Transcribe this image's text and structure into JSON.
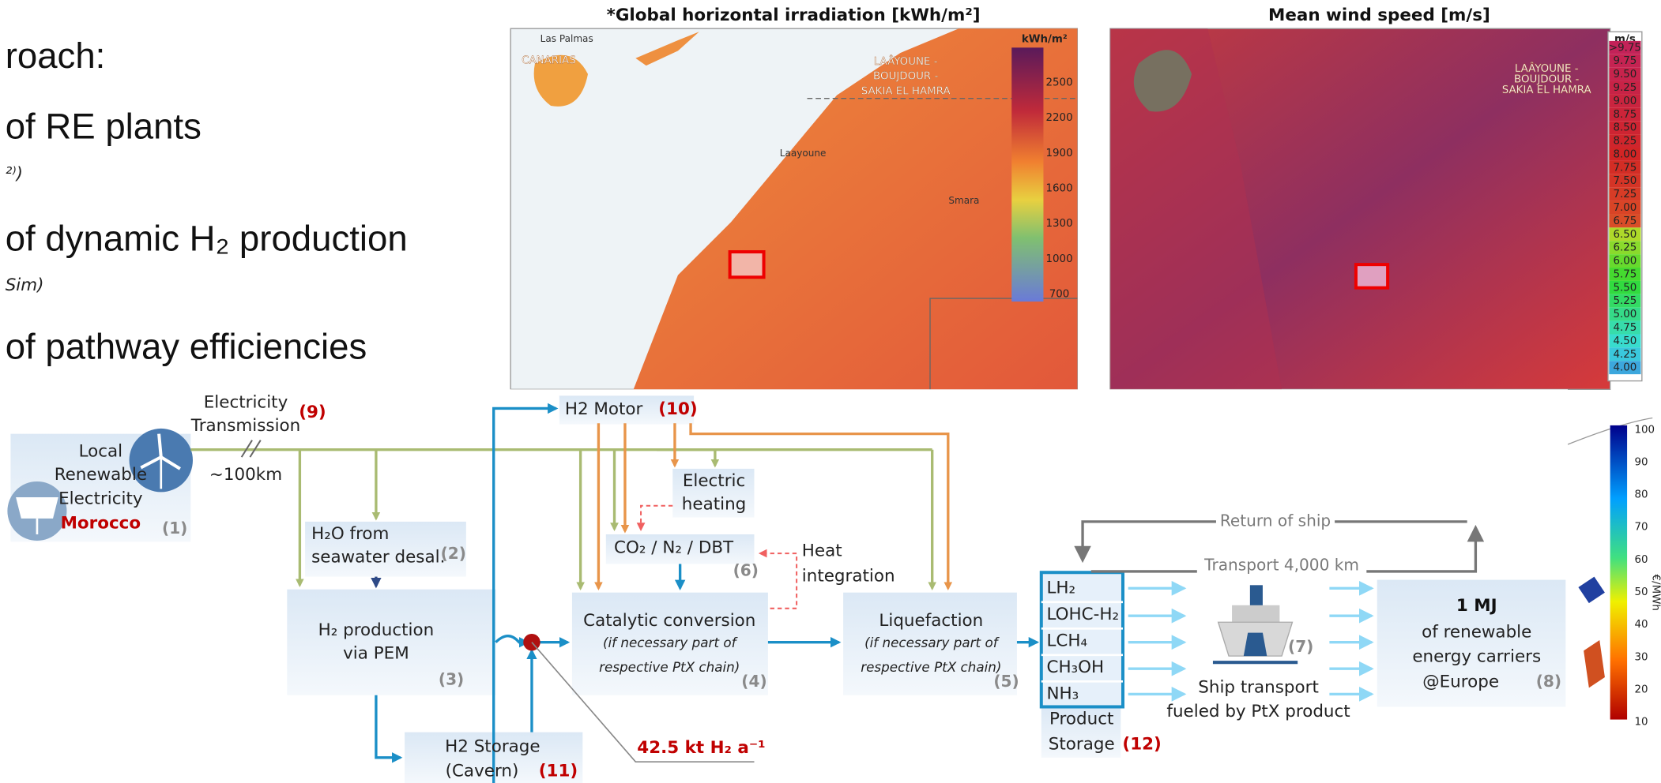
{
  "left_text": [
    "roach:",
    "of RE plants",
    "²⁾)",
    "of dynamic H₂ production",
    "Sim)",
    "of pathway efficiencies"
  ],
  "maps": [
    {
      "title": "*Global horizontal irradiation [kWh/m²]",
      "unit": "kWh/m²",
      "legend": [
        2500,
        2200,
        1900,
        1600,
        1300,
        1000,
        700
      ],
      "places": [
        "Las Palmas",
        "CANARIAS",
        "LAÂYOUNE -",
        "BOUJDOUR -",
        "SAKIA EL HAMRA",
        "Laayoune",
        "Smara"
      ]
    },
    {
      "title": "Mean wind speed [m/s]",
      "unit": "m/s",
      "legend": [
        ">9.75",
        "9.75",
        "9.50",
        "9.25",
        "9.00",
        "8.75",
        "8.50",
        "8.25",
        "8.00",
        "7.75",
        "7.50",
        "7.25",
        "7.00",
        "6.75",
        "6.50",
        "6.25",
        "6.00",
        "5.75",
        "5.50",
        "5.25",
        "5.00",
        "4.75",
        "4.50",
        "4.25",
        "4.00"
      ]
    }
  ],
  "colorbar": {
    "ticks": [
      100,
      90,
      80,
      70,
      60,
      50,
      40,
      30,
      20,
      10
    ],
    "unit": "€/MWh"
  },
  "diagram": {
    "transmission": {
      "lines": [
        "Electricity",
        "Transmission"
      ],
      "number": "(9)",
      "distance": "~100km"
    },
    "nodes": [
      {
        "lines": [
          "Local",
          "Renewable",
          "Electricity"
        ],
        "highlight": "Morocco",
        "number": "(1)"
      },
      {
        "lines": [
          "H₂O from",
          "seawater desal."
        ],
        "number": "(2)"
      },
      {
        "lines": [
          "H₂ production",
          "via PEM"
        ],
        "number": "(3)"
      },
      {
        "lines": [
          "Catalytic conversion",
          "(if necessary part of",
          "respective PtX chain)"
        ],
        "number": "(4)"
      },
      {
        "lines": [
          "Liquefaction",
          "(if necessary part of",
          "respective PtX chain)"
        ],
        "number": "(5)"
      },
      {
        "lines": [
          "CO₂ / N₂ / DBT"
        ],
        "number": "(6)"
      },
      {
        "lines": [
          "Ship transport",
          "fueled by PtX product"
        ],
        "number": "(7)"
      },
      {
        "lines": [
          "1 MJ",
          "of renewable",
          "energy carriers",
          "@Europe"
        ],
        "number": "(8)"
      },
      {
        "lines": [
          "H2 Motor"
        ],
        "number": "(10)"
      },
      {
        "lines": [
          "H2 Storage",
          "(Cavern)"
        ],
        "number": "(11)"
      },
      {
        "lines": [
          "Product",
          "Storage"
        ],
        "number": "(12)"
      },
      {
        "lines": [
          "Electric",
          "heating"
        ]
      }
    ],
    "products": [
      "LH₂",
      "LOHC-H₂",
      "LCH₄",
      "CH₃OH",
      "NH₃"
    ],
    "heat": [
      "Heat",
      "integration"
    ],
    "return": "Return of ship",
    "transport": "Transport 4,000 km",
    "output": "42.5 kt H₂ a⁻¹"
  }
}
